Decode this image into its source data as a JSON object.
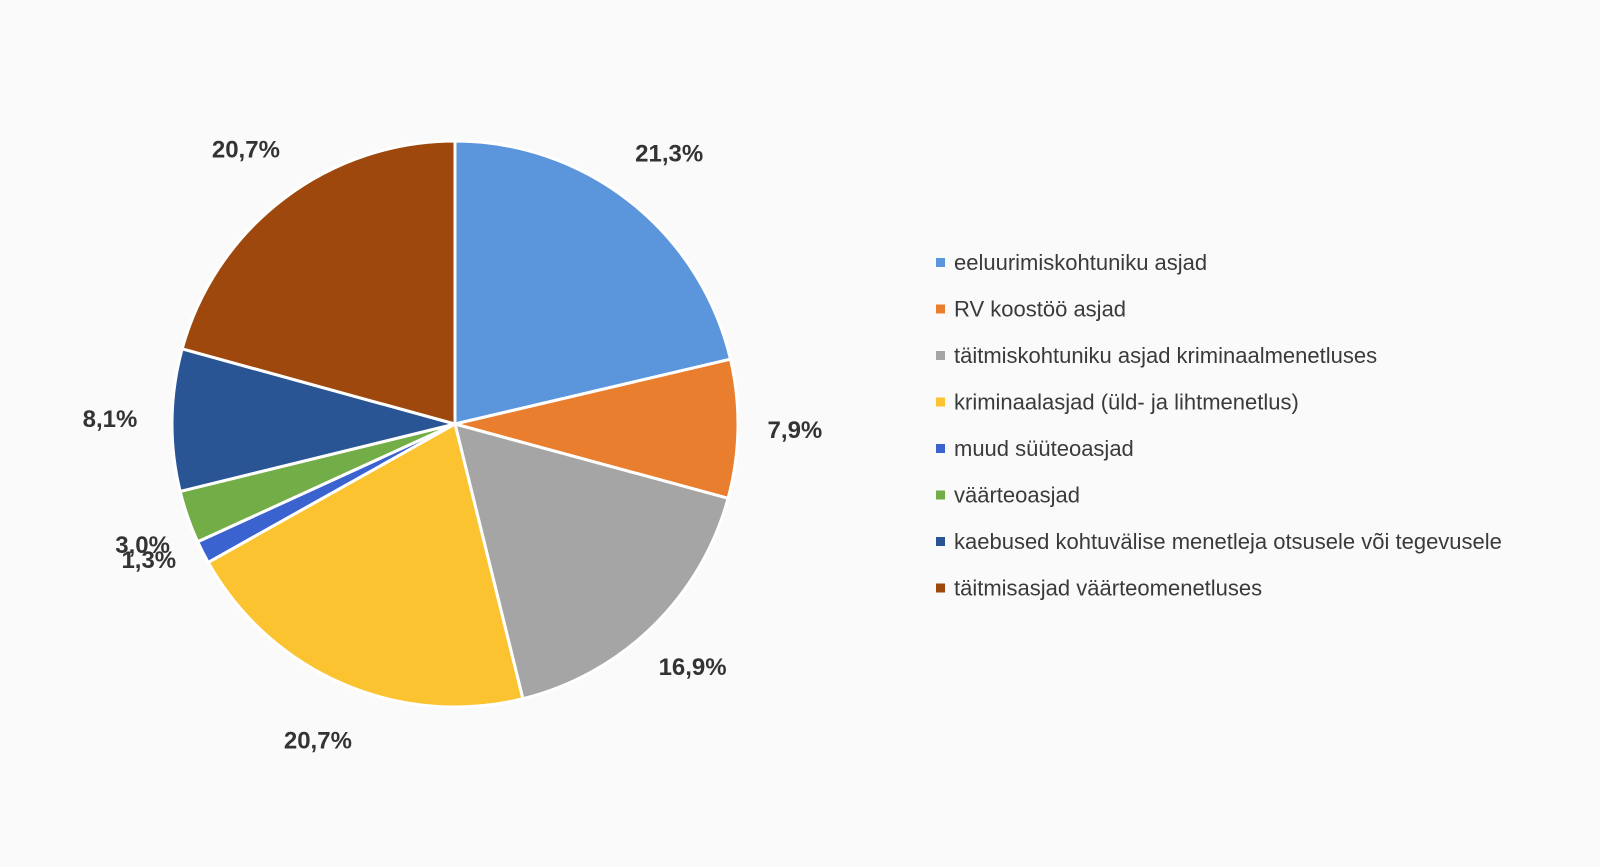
{
  "chart_data": {
    "type": "pie",
    "title": "",
    "legend_position": "right",
    "start_angle": "12 o'clock",
    "direction": "clockwise",
    "unit": "%",
    "slices": [
      {
        "label": "eeluurimiskohtuniku asjad",
        "value": 21.3,
        "display": "21,3%",
        "color": "#5b95db"
      },
      {
        "label": "RV koostöö asjad",
        "value": 7.9,
        "display": "7,9%",
        "color": "#e97e2e"
      },
      {
        "label": "täitmiskohtuniku asjad kriminaalmenetluses",
        "value": 16.9,
        "display": "16,9%",
        "color": "#a5a5a5"
      },
      {
        "label": "kriminaalasjad (üld- ja lihtmenetlus)",
        "value": 20.7,
        "display": "20,7%",
        "color": "#fbc330"
      },
      {
        "label": "muud süüteoasjad",
        "value": 1.3,
        "display": "1,3%",
        "color": "#3b63cf"
      },
      {
        "label": "väärteoasjad",
        "value": 3.0,
        "display": "3,0%",
        "color": "#72ad47"
      },
      {
        "label": "kaebused kohtuvälise menetleja otsusele või tegevusele",
        "value": 8.1,
        "display": "8,1%",
        "color": "#2a5595"
      },
      {
        "label": "täitmisasjad väärteomenetluses",
        "value": 20.7,
        "display": "20,7%",
        "color": "#9e480d"
      }
    ]
  }
}
